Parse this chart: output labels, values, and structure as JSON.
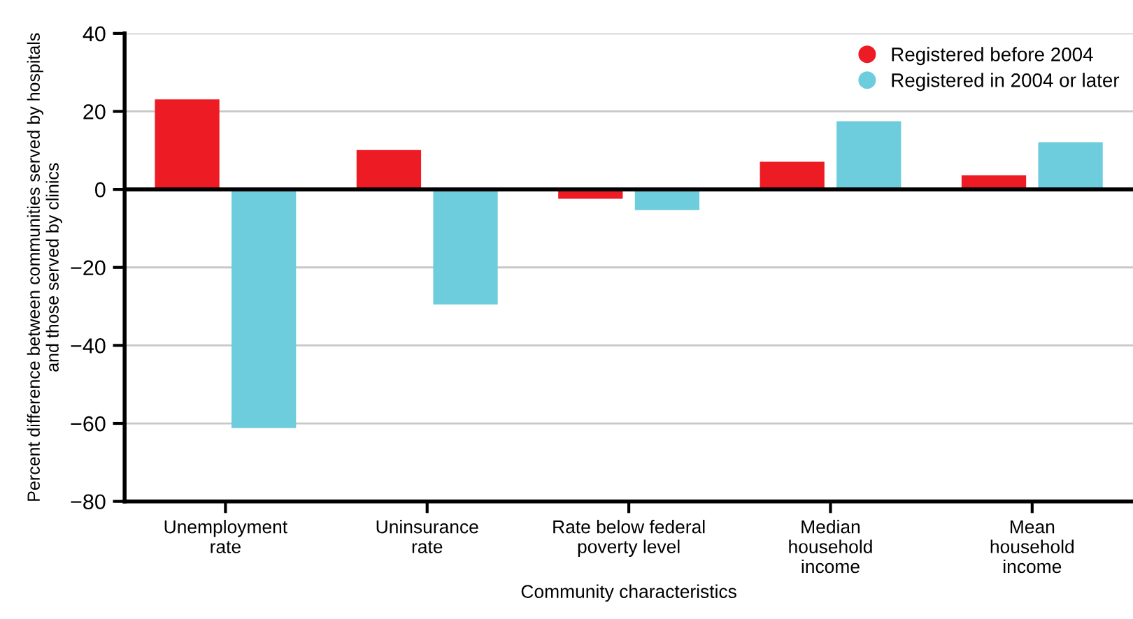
{
  "chart_data": {
    "type": "bar",
    "xlabel": "Community characteristics",
    "ylabel": "Percent difference between communities served by hospitals\nand those served by clinics",
    "categories": [
      "Unemployment\nrate",
      "Uninsurance\nrate",
      "Rate below federal\npoverty level",
      "Median\nhousehold\nincome",
      "Mean\nhousehold\nincome"
    ],
    "series": [
      {
        "name": "Registered before 2004",
        "color": "#ed1c24",
        "values": [
          23.1,
          10.1,
          -2.4,
          7.1,
          3.6
        ]
      },
      {
        "name": "Registered in 2004 or later",
        "color": "#6ecddc",
        "values": [
          -61.2,
          -29.5,
          -5.3,
          17.5,
          12.1
        ]
      }
    ],
    "ylim": [
      -80,
      40
    ],
    "yticks": [
      {
        "value": -80,
        "label": "−80"
      },
      {
        "value": -60,
        "label": "−60"
      },
      {
        "value": -40,
        "label": "−40"
      },
      {
        "value": -20,
        "label": "−20"
      },
      0,
      20,
      40
    ],
    "grid": "y",
    "legend": "top right"
  }
}
